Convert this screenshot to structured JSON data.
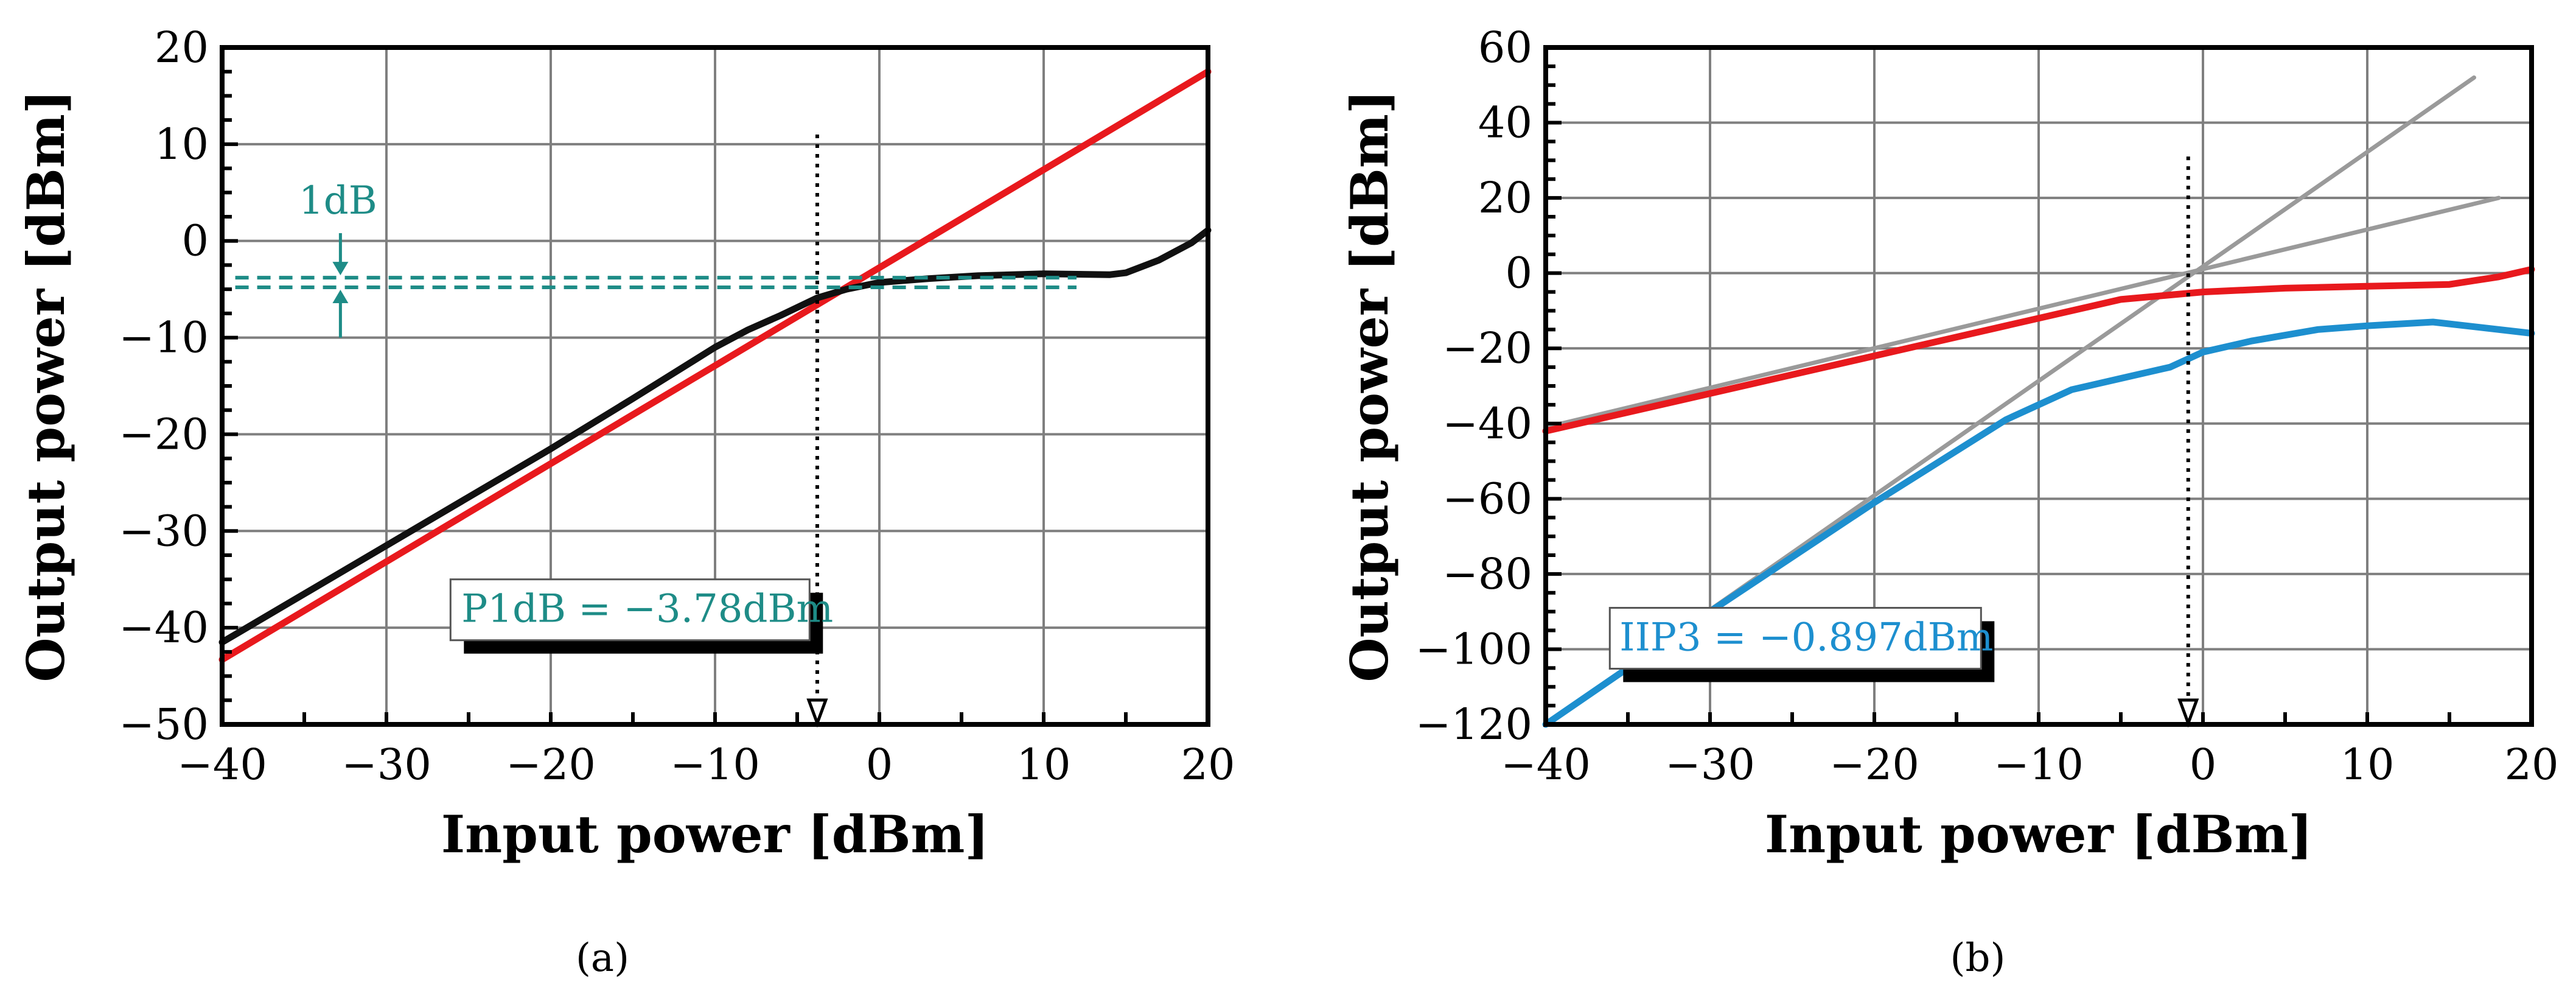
{
  "chart_data": [
    {
      "type": "line",
      "panel_label": "(a)",
      "xlabel": "Input power [dBm]",
      "ylabel": "Output power [dBm]",
      "xlim": [
        -40,
        20
      ],
      "ylim": [
        -50,
        20
      ],
      "xticks": [
        -40,
        -30,
        -20,
        -10,
        0,
        10,
        20
      ],
      "yticks": [
        -50,
        -40,
        -30,
        -20,
        -10,
        0,
        10,
        20
      ],
      "xtick_labels": [
        "−40",
        "−30",
        "−20",
        "−10",
        "0",
        "10",
        "20"
      ],
      "ytick_labels": [
        "−50",
        "−40",
        "−30",
        "−20",
        "−10",
        "0",
        "10",
        "20"
      ],
      "grid": true,
      "series": [
        {
          "color": "#e8191d",
          "x": [
            -40,
            20
          ],
          "y": [
            -43.3,
            17.5
          ]
        },
        {
          "color": "#111111",
          "x": [
            -40,
            -30,
            -20,
            -15,
            -10,
            -8,
            -6,
            -3.78,
            -2,
            0,
            3,
            6,
            10,
            14,
            15,
            17,
            19,
            20
          ],
          "y": [
            -41.5,
            -31.5,
            -21.5,
            -16.3,
            -11.0,
            -9.2,
            -7.7,
            -5.9,
            -5.0,
            -4.3,
            -3.9,
            -3.6,
            -3.4,
            -3.5,
            -3.3,
            -2.0,
            -0.2,
            1.1
          ]
        }
      ],
      "annotations": {
        "p1db_label": "P1dB = −3.78dBm",
        "p1db_x": -3.78,
        "gap_label": "1dB",
        "gap_levels": [
          -3.8,
          -4.8
        ]
      }
    },
    {
      "type": "line",
      "panel_label": "(b)",
      "xlabel": "Input power [dBm]",
      "ylabel": "Output power [dBm]",
      "xlim": [
        -40,
        20
      ],
      "ylim": [
        -120,
        60
      ],
      "xticks": [
        -40,
        -30,
        -20,
        -10,
        0,
        10,
        20
      ],
      "yticks": [
        -120,
        -100,
        -80,
        -60,
        -40,
        -20,
        0,
        20,
        40,
        60
      ],
      "xtick_labels": [
        "−40",
        "−30",
        "−20",
        "−10",
        "0",
        "10",
        "20"
      ],
      "ytick_labels": [
        "−120",
        "−100",
        "−80",
        "−60",
        "−40",
        "−20",
        "0",
        "20",
        "40",
        "60"
      ],
      "grid": true,
      "series": [
        {
          "color": "#9a9a9a",
          "x": [
            -40,
            16.5
          ],
          "y": [
            -120,
            52
          ]
        },
        {
          "color": "#9a9a9a",
          "x": [
            -40,
            18
          ],
          "y": [
            -41,
            20
          ]
        },
        {
          "color": "#e8191d",
          "x": [
            -40,
            -30,
            -20,
            -10,
            -5,
            0,
            5,
            10,
            15,
            18,
            20
          ],
          "y": [
            -42,
            -32,
            -22,
            -12,
            -7,
            -5,
            -4,
            -3.5,
            -3,
            -1,
            1
          ]
        },
        {
          "color": "#1d8fcf",
          "x": [
            -40,
            -30,
            -20,
            -12,
            -8,
            -5,
            -2,
            0,
            3,
            7,
            10,
            14,
            18,
            20
          ],
          "y": [
            -120,
            -90,
            -61,
            -39,
            -31,
            -28,
            -25,
            -21,
            -18,
            -15,
            -14,
            -13,
            -15,
            -16
          ]
        }
      ],
      "annotations": {
        "iip3_label": "IIP3 = −0.897dBm",
        "iip3_x": -0.897
      }
    }
  ]
}
